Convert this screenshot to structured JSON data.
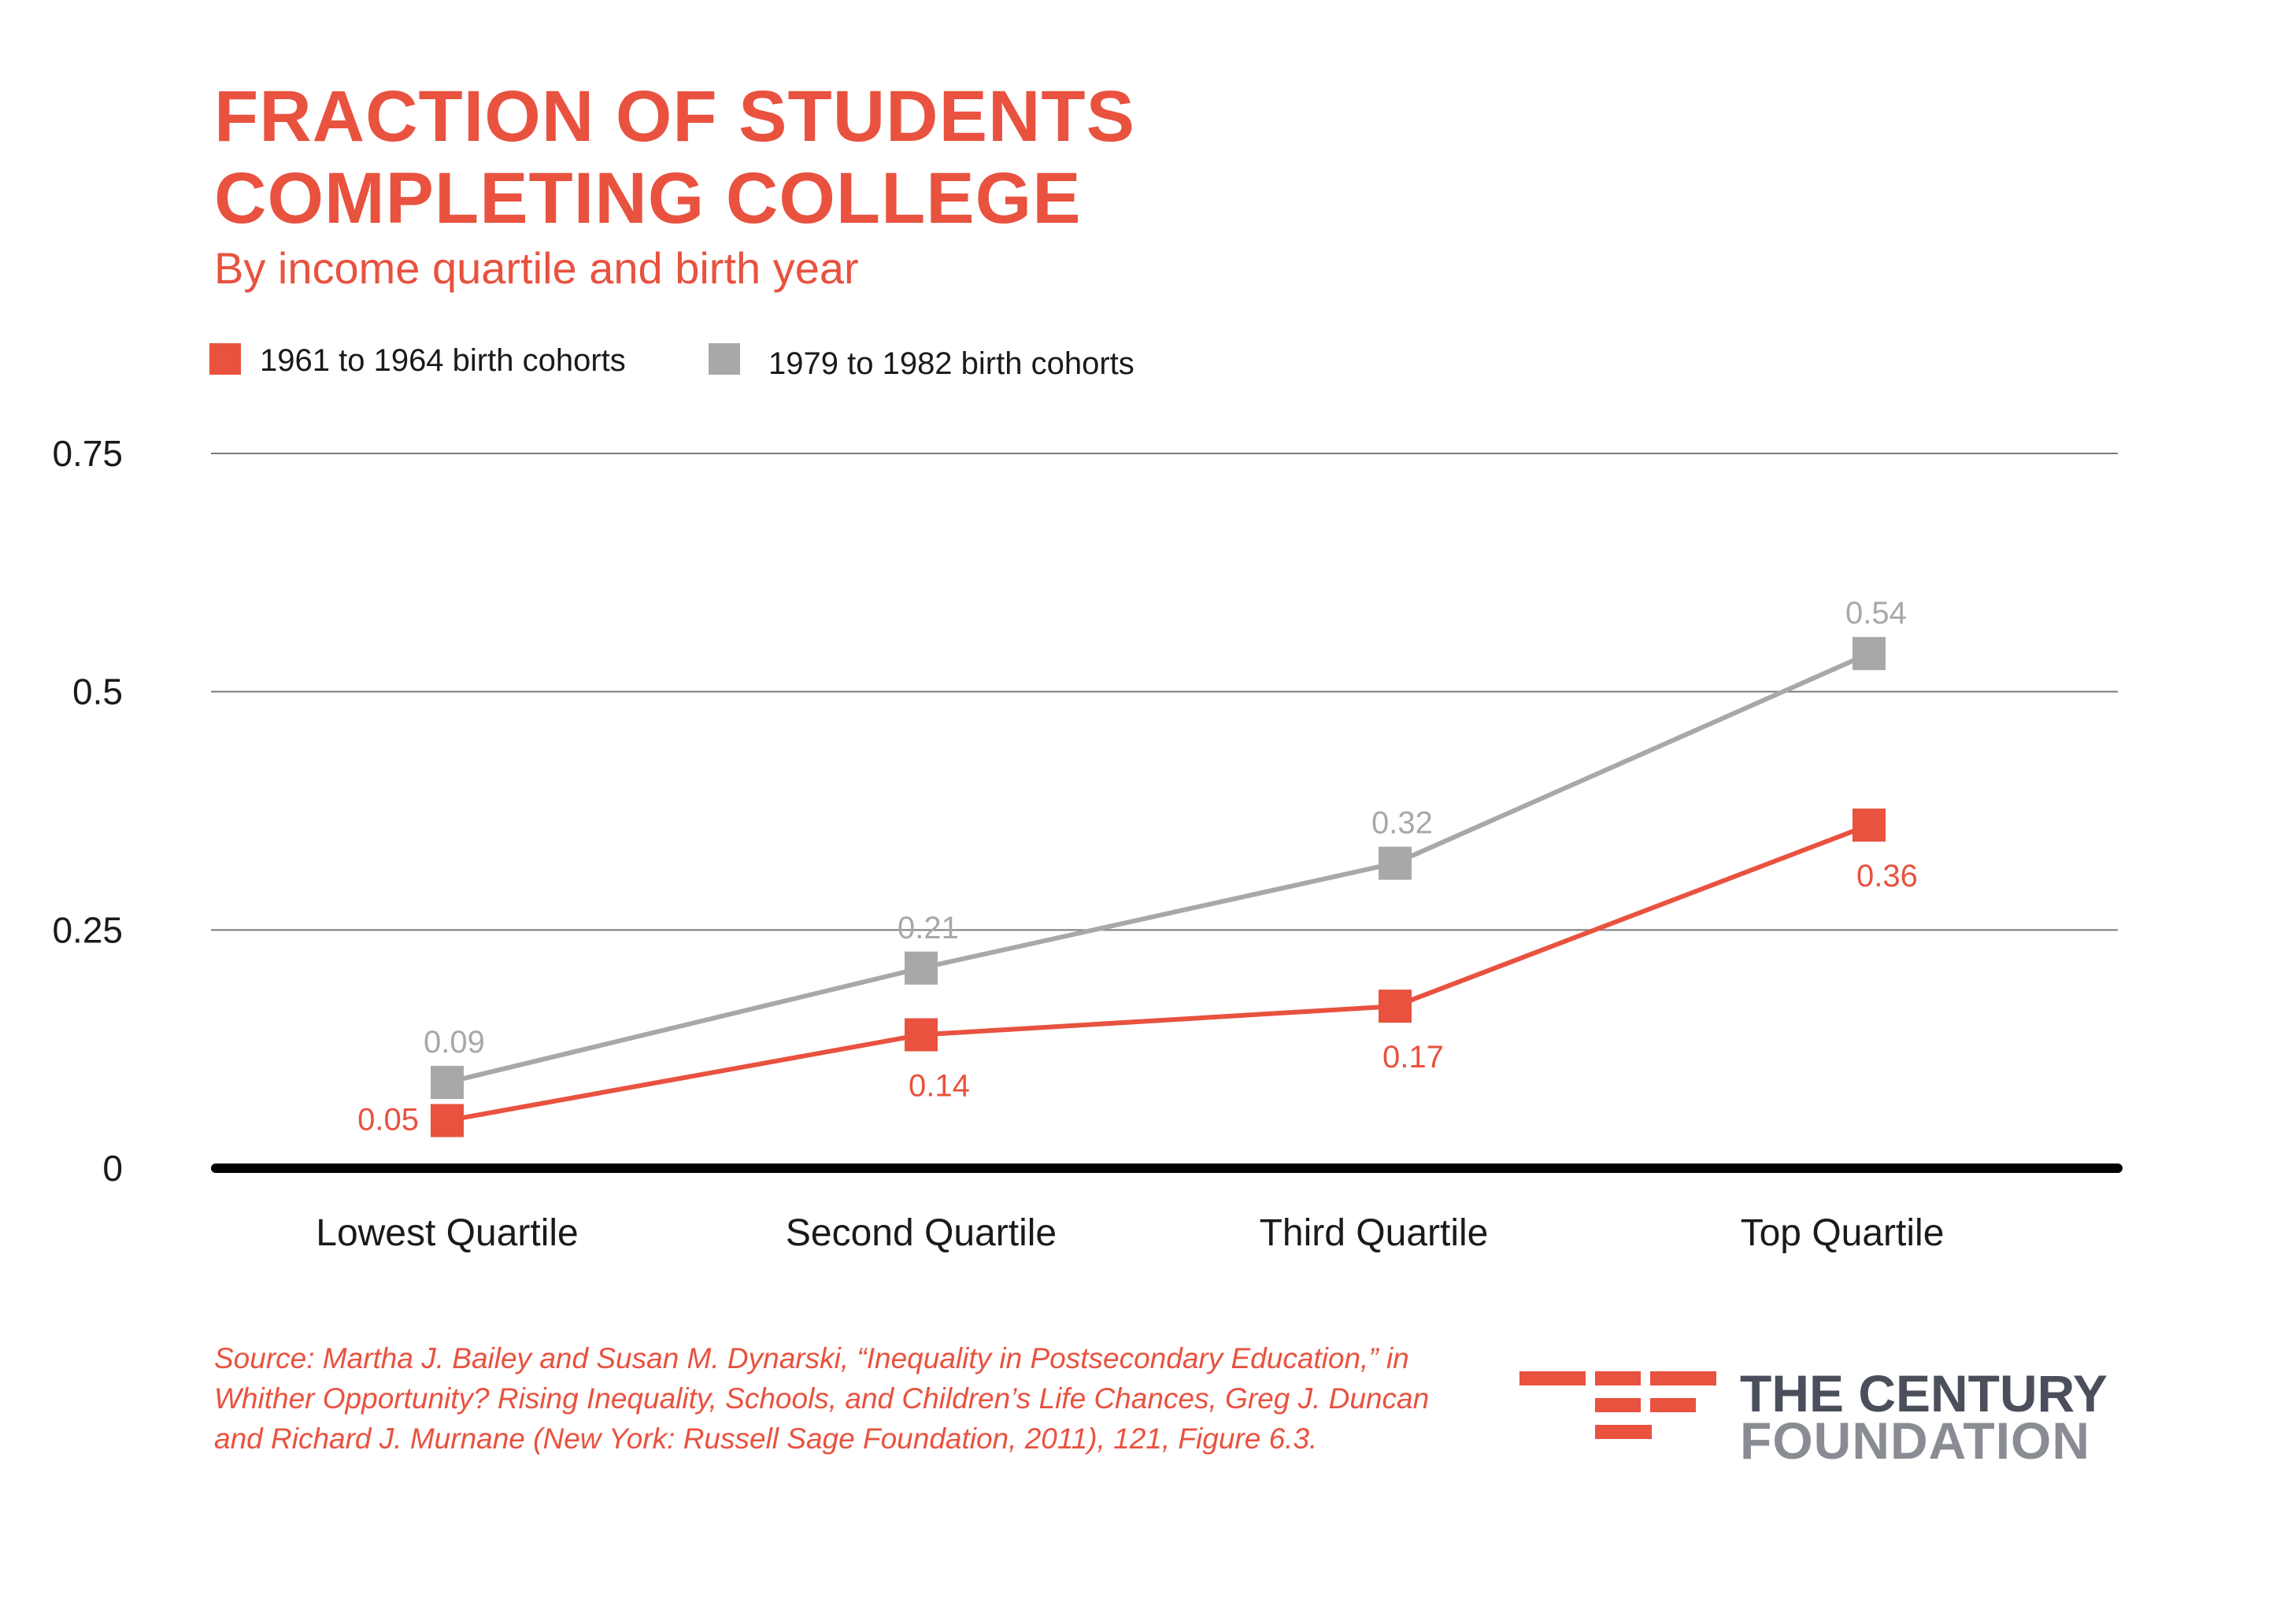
{
  "title_lines": [
    "FRACTION OF STUDENTS",
    "COMPLETING COLLEGE"
  ],
  "subtitle": "By income quartile and birth year",
  "colors": {
    "accent": "#e8523f",
    "series_1": "#e8523f",
    "series_2": "#a8a8a8",
    "axis": "#000000",
    "grid": "#7a7a7a",
    "logo_dark": "#4b4f5c",
    "logo_light": "#8a8c94"
  },
  "chart_data": {
    "type": "line",
    "title": "FRACTION OF STUDENTS COMPLETING COLLEGE",
    "subtitle": "By income quartile and birth year",
    "categories": [
      "Lowest Quartile",
      "Second Quartile",
      "Third Quartile",
      "Top Quartile"
    ],
    "series": [
      {
        "name": "1961 to 1964 birth cohorts",
        "values": [
          0.05,
          0.14,
          0.17,
          0.36
        ],
        "labels": [
          "0.05",
          "0.14",
          "0.17",
          "0.36"
        ],
        "color": "#e8523f"
      },
      {
        "name": "1979 to 1982 birth cohorts",
        "values": [
          0.09,
          0.21,
          0.32,
          0.54
        ],
        "labels": [
          "0.09",
          "0.21",
          "0.32",
          "0.54"
        ],
        "color": "#a8a8a8"
      }
    ],
    "yticks": [
      0,
      0.25,
      0.5,
      0.75
    ],
    "ytick_labels": [
      "0",
      "0.25",
      "0.5",
      "0.75"
    ],
    "ylim": [
      0,
      0.75
    ],
    "xlabel": "",
    "ylabel": "",
    "grid": true,
    "legend_position": "top-left"
  },
  "source": "Source: Martha J. Bailey and Susan M. Dynarski, “Inequality in Postsecondary Education,” in Whither Opportunity? Rising Inequality, Schools, and Children’s Life Chances, Greg J. Duncan and Richard J. Murnane (New York: Russell Sage Foundation, 2011), 121, Figure 6.3.",
  "logo": {
    "line1": "THE CENTURY",
    "line2": "FOUNDATION"
  }
}
